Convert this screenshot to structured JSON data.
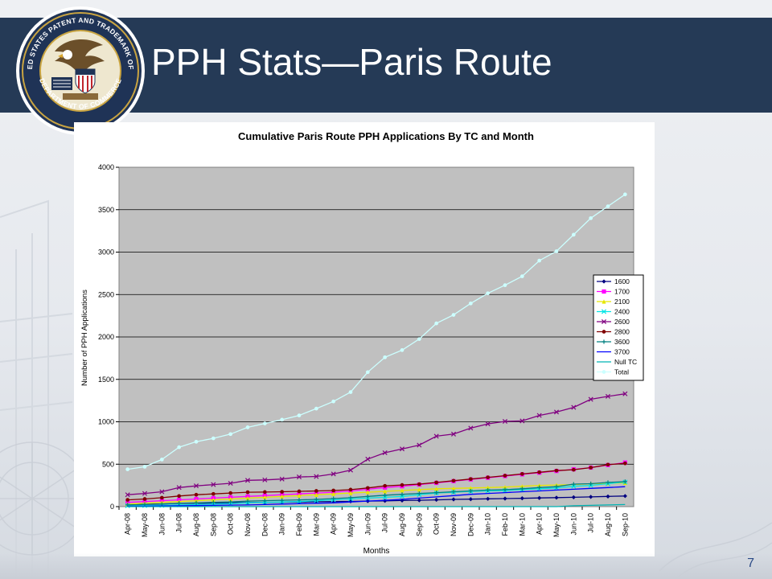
{
  "slide": {
    "title": "PPH Stats—Paris Route",
    "page_number": "7",
    "seal_icon": "uspto-seal-icon",
    "seal_text_top": "UNITED STATES PATENT AND TRADEMARK OFFICE",
    "seal_text_bottom": "DEPARTMENT OF COMMERCE",
    "colors": {
      "title_bar": "#253a56",
      "plot_background": "#c0c0c0",
      "page_number": "#2b4a86"
    }
  },
  "chart_data": {
    "type": "line",
    "title": "Cumulative Paris Route PPH Applications By TC and Month",
    "xlabel": "Months",
    "ylabel": "Number of PPH Applications",
    "ylim": [
      0,
      4000
    ],
    "yticks": [
      "0",
      "500",
      "1000",
      "1500",
      "2000",
      "2500",
      "3000",
      "3500",
      "4000"
    ],
    "grid": "horizontal",
    "legend_position": "right",
    "categories": [
      "Apr-08",
      "May-08",
      "Jun-08",
      "Jul-08",
      "Aug-08",
      "Sep-08",
      "Oct-08",
      "Nov-08",
      "Dec-08",
      "Jan-09",
      "Feb-09",
      "Mar-09",
      "Apr-09",
      "May-09",
      "Jun-09",
      "Jul-09",
      "Aug-09",
      "Sep-09",
      "Oct-09",
      "Nov-09",
      "Dec-09",
      "Jan-10",
      "Feb-10",
      "Mar-10",
      "Apr-10",
      "May-10",
      "Jun-10",
      "Jul-10",
      "Aug-10",
      "Sep-10"
    ],
    "series": [
      {
        "name": "1600",
        "color": "#000080",
        "marker": "diamond",
        "values": [
          25,
          28,
          32,
          38,
          40,
          42,
          45,
          48,
          50,
          52,
          55,
          58,
          60,
          62,
          65,
          68,
          72,
          75,
          80,
          85,
          88,
          92,
          95,
          98,
          102,
          106,
          110,
          115,
          120,
          125
        ]
      },
      {
        "name": "1700",
        "color": "#ff00ff",
        "marker": "square",
        "values": [
          50,
          60,
          70,
          80,
          90,
          100,
          110,
          120,
          130,
          140,
          150,
          160,
          170,
          185,
          205,
          225,
          240,
          260,
          280,
          300,
          320,
          340,
          360,
          380,
          400,
          420,
          440,
          460,
          490,
          520
        ]
      },
      {
        "name": "2100",
        "color": "#e6e600",
        "marker": "triangle",
        "values": [
          30,
          40,
          50,
          60,
          70,
          80,
          90,
          100,
          110,
          120,
          130,
          140,
          150,
          160,
          170,
          180,
          190,
          200,
          210,
          215,
          220,
          225,
          230,
          240,
          250,
          255,
          260,
          270,
          275,
          280
        ]
      },
      {
        "name": "2400",
        "color": "#00e5e5",
        "marker": "x",
        "values": [
          10,
          12,
          15,
          20,
          25,
          30,
          35,
          45,
          50,
          55,
          60,
          70,
          80,
          90,
          100,
          110,
          120,
          140,
          160,
          170,
          180,
          185,
          190,
          200,
          210,
          220,
          240,
          250,
          270,
          290
        ]
      },
      {
        "name": "2600",
        "color": "#800080",
        "marker": "x",
        "values": [
          140,
          155,
          175,
          225,
          245,
          260,
          275,
          310,
          315,
          325,
          350,
          355,
          385,
          430,
          560,
          635,
          680,
          725,
          830,
          855,
          925,
          975,
          1005,
          1010,
          1075,
          1115,
          1170,
          1265,
          1300,
          1330
        ]
      },
      {
        "name": "2800",
        "color": "#800000",
        "marker": "circle",
        "values": [
          80,
          90,
          105,
          125,
          140,
          150,
          160,
          170,
          172,
          175,
          180,
          185,
          190,
          200,
          220,
          245,
          255,
          265,
          285,
          305,
          325,
          345,
          365,
          385,
          405,
          425,
          435,
          460,
          495,
          510
        ]
      },
      {
        "name": "3600",
        "color": "#008080",
        "marker": "plus",
        "values": [
          20,
          25,
          30,
          40,
          45,
          50,
          55,
          65,
          70,
          75,
          80,
          85,
          95,
          105,
          120,
          135,
          145,
          155,
          165,
          175,
          185,
          195,
          200,
          210,
          225,
          235,
          265,
          270,
          285,
          295
        ]
      },
      {
        "name": "3700",
        "color": "#0000ff",
        "marker": "none",
        "values": [
          5,
          6,
          8,
          10,
          12,
          15,
          18,
          20,
          25,
          30,
          35,
          40,
          45,
          55,
          65,
          75,
          85,
          100,
          115,
          130,
          145,
          155,
          165,
          175,
          185,
          195,
          205,
          215,
          225,
          235
        ]
      },
      {
        "name": "Null TC",
        "color": "#00b3b3",
        "marker": "none",
        "values": [
          0,
          0,
          0,
          0,
          0,
          0,
          0,
          0,
          0,
          0,
          0,
          0,
          0,
          0,
          0,
          0,
          0,
          0,
          0,
          0,
          0,
          0,
          0,
          0,
          0,
          0,
          10,
          15,
          20,
          25
        ]
      },
      {
        "name": "Total",
        "color": "#ccffff",
        "marker": "circle",
        "values": [
          440,
          470,
          555,
          700,
          765,
          805,
          855,
          935,
          980,
          1025,
          1075,
          1155,
          1240,
          1350,
          1585,
          1760,
          1845,
          1975,
          2160,
          2260,
          2395,
          2515,
          2610,
          2715,
          2900,
          3010,
          3205,
          3400,
          3540,
          3680
        ]
      }
    ]
  }
}
